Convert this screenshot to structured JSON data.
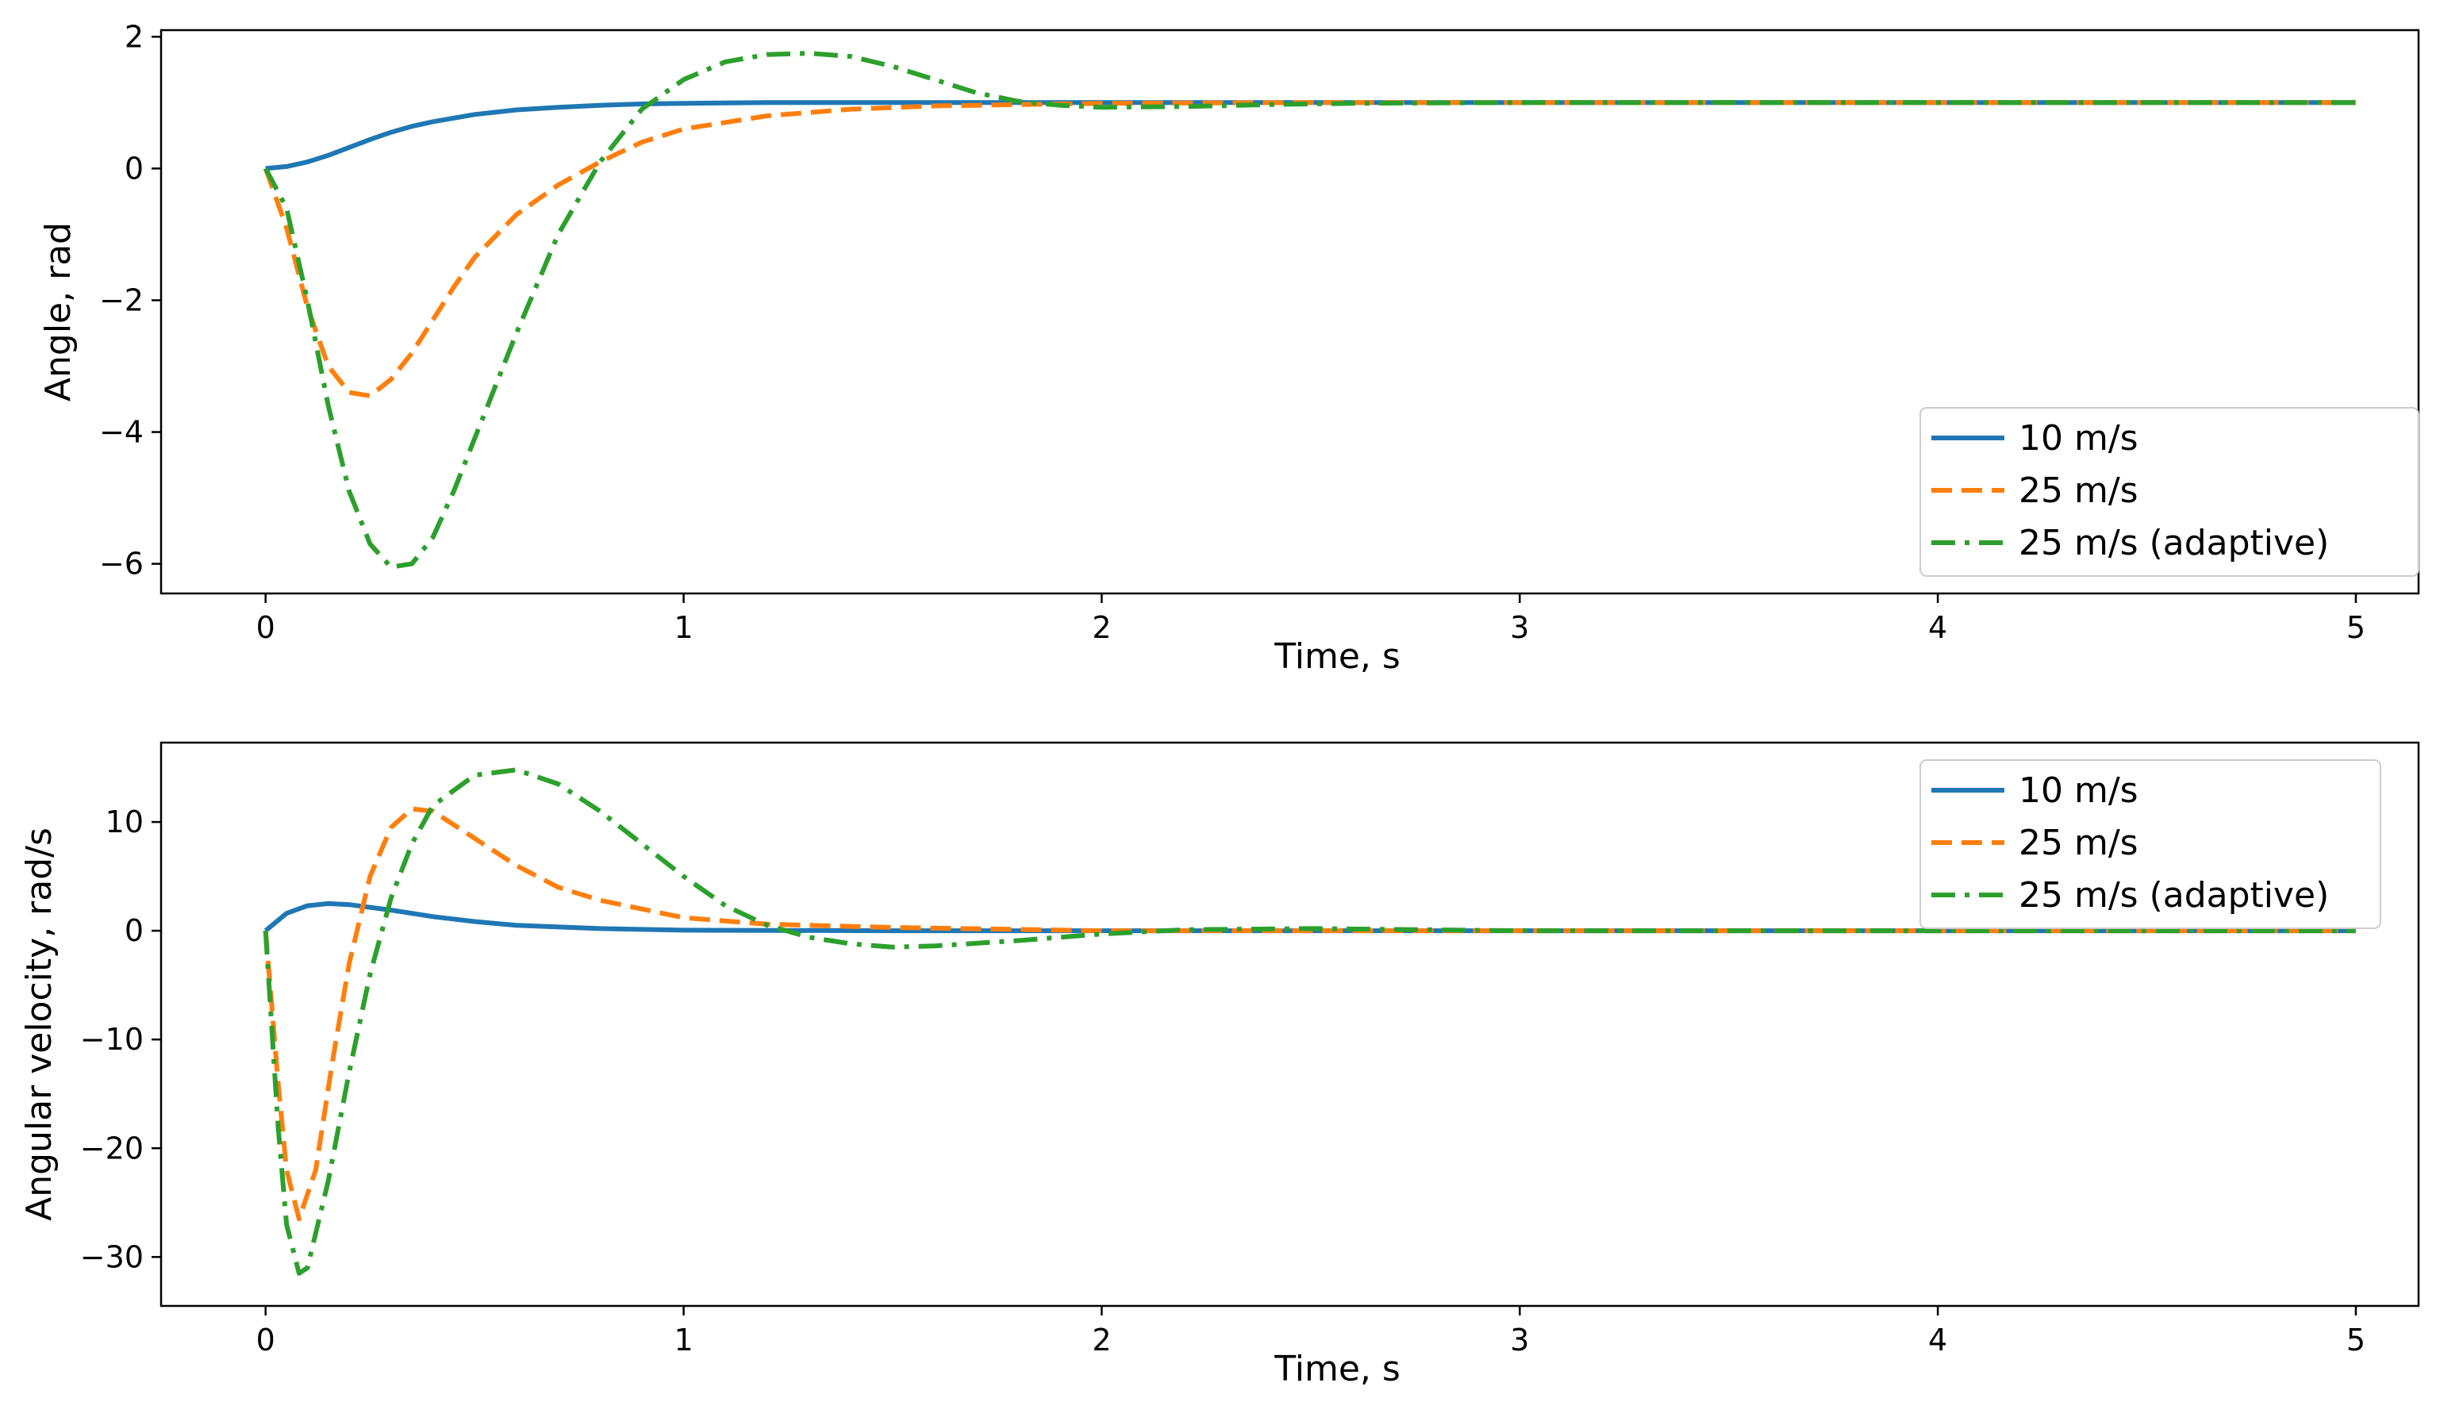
{
  "chart_data": [
    {
      "type": "line",
      "xlabel": "Time, s",
      "ylabel": "Angle, rad",
      "xlim": [
        -0.25,
        5.15
      ],
      "ylim": [
        -6.45,
        2.1
      ],
      "xticks": [
        0,
        1,
        2,
        3,
        4,
        5
      ],
      "yticks": [
        -6,
        -4,
        -2,
        0,
        2
      ],
      "xtick_labels": [
        "0",
        "1",
        "2",
        "3",
        "4",
        "5"
      ],
      "ytick_labels": [
        "−6",
        "−4",
        "−2",
        "0",
        "2"
      ],
      "grid": false,
      "legend_position": "bottom-right",
      "series": [
        {
          "name": "10 m/s",
          "color": "#1f77b4",
          "style": "solid",
          "x": [
            0,
            0.05,
            0.1,
            0.15,
            0.2,
            0.25,
            0.3,
            0.35,
            0.4,
            0.5,
            0.6,
            0.7,
            0.8,
            0.9,
            1.0,
            1.2,
            1.5,
            2.0,
            3.0,
            4.0,
            5.0
          ],
          "y": [
            0,
            0.03,
            0.1,
            0.2,
            0.32,
            0.44,
            0.55,
            0.64,
            0.71,
            0.82,
            0.89,
            0.93,
            0.96,
            0.98,
            0.99,
            1.0,
            1.0,
            1.0,
            1.0,
            1.0,
            1.0
          ]
        },
        {
          "name": "25 m/s",
          "color": "#ff7f0e",
          "style": "dashed",
          "x": [
            0,
            0.05,
            0.1,
            0.15,
            0.2,
            0.25,
            0.3,
            0.35,
            0.4,
            0.45,
            0.5,
            0.6,
            0.7,
            0.8,
            0.9,
            1.0,
            1.2,
            1.4,
            1.6,
            2.0,
            2.5,
            3.0,
            4.0,
            5.0
          ],
          "y": [
            0,
            -0.9,
            -2.1,
            -3.0,
            -3.4,
            -3.45,
            -3.2,
            -2.8,
            -2.3,
            -1.8,
            -1.35,
            -0.7,
            -0.25,
            0.1,
            0.4,
            0.6,
            0.8,
            0.9,
            0.95,
            0.99,
            1.0,
            1.0,
            1.0,
            1.0
          ]
        },
        {
          "name": "25 m/s (adaptive)",
          "color": "#2ca02c",
          "style": "dashdot",
          "x": [
            0,
            0.05,
            0.1,
            0.15,
            0.2,
            0.25,
            0.3,
            0.35,
            0.4,
            0.45,
            0.5,
            0.6,
            0.7,
            0.8,
            0.9,
            1.0,
            1.1,
            1.2,
            1.3,
            1.4,
            1.5,
            1.6,
            1.7,
            1.8,
            1.9,
            2.0,
            2.2,
            2.4,
            2.6,
            3.0,
            4.0,
            5.0
          ],
          "y": [
            0,
            -0.6,
            -2.0,
            -3.6,
            -4.9,
            -5.7,
            -6.05,
            -6.0,
            -5.6,
            -4.9,
            -4.1,
            -2.5,
            -1.0,
            0.1,
            0.9,
            1.35,
            1.62,
            1.73,
            1.75,
            1.7,
            1.55,
            1.35,
            1.15,
            1.02,
            0.96,
            0.93,
            0.94,
            0.97,
            0.99,
            1.0,
            1.0,
            1.0
          ]
        }
      ]
    },
    {
      "type": "line",
      "xlabel": "Time, s",
      "ylabel": "Angular velocity, rad/s",
      "xlim": [
        -0.25,
        5.15
      ],
      "ylim": [
        -34.5,
        17.3
      ],
      "xticks": [
        0,
        1,
        2,
        3,
        4,
        5
      ],
      "yticks": [
        -30,
        -20,
        -10,
        0,
        10
      ],
      "xtick_labels": [
        "0",
        "1",
        "2",
        "3",
        "4",
        "5"
      ],
      "ytick_labels": [
        "−30",
        "−20",
        "−10",
        "0",
        "10"
      ],
      "grid": false,
      "legend_position": "top-right",
      "series": [
        {
          "name": "10 m/s",
          "color": "#1f77b4",
          "style": "solid",
          "x": [
            0,
            0.05,
            0.1,
            0.15,
            0.2,
            0.3,
            0.4,
            0.5,
            0.6,
            0.8,
            1.0,
            1.5,
            2.0,
            3.0,
            4.0,
            5.0
          ],
          "y": [
            0,
            1.6,
            2.3,
            2.5,
            2.4,
            1.9,
            1.3,
            0.85,
            0.5,
            0.2,
            0.05,
            0.0,
            0.0,
            0.0,
            0.0,
            0.0
          ]
        },
        {
          "name": "25 m/s",
          "color": "#ff7f0e",
          "style": "dashed",
          "x": [
            0,
            0.03,
            0.05,
            0.08,
            0.12,
            0.16,
            0.2,
            0.25,
            0.3,
            0.35,
            0.4,
            0.5,
            0.6,
            0.7,
            0.8,
            1.0,
            1.2,
            1.5,
            2.0,
            3.0,
            4.0,
            5.0
          ],
          "y": [
            0,
            -14,
            -22,
            -26.5,
            -22,
            -12,
            -3,
            5,
            9.5,
            11.2,
            11.0,
            8.5,
            6,
            4,
            2.8,
            1.2,
            0.6,
            0.3,
            0.0,
            0.0,
            0.0,
            0.0
          ]
        },
        {
          "name": "25 m/s (adaptive)",
          "color": "#2ca02c",
          "style": "dashdot",
          "x": [
            0,
            0.03,
            0.05,
            0.08,
            0.1,
            0.15,
            0.2,
            0.25,
            0.3,
            0.35,
            0.4,
            0.5,
            0.6,
            0.7,
            0.8,
            0.9,
            1.0,
            1.1,
            1.2,
            1.3,
            1.4,
            1.5,
            1.6,
            1.8,
            2.0,
            2.2,
            2.5,
            3.0,
            4.0,
            5.0
          ],
          "y": [
            0,
            -18,
            -27,
            -31.5,
            -31,
            -23,
            -13,
            -4,
            3,
            8,
            11.5,
            14.3,
            14.8,
            13.5,
            11,
            8,
            5,
            2.3,
            0.5,
            -0.6,
            -1.2,
            -1.5,
            -1.4,
            -0.9,
            -0.3,
            0.1,
            0.2,
            0.0,
            0.0,
            0.0
          ]
        }
      ]
    }
  ]
}
